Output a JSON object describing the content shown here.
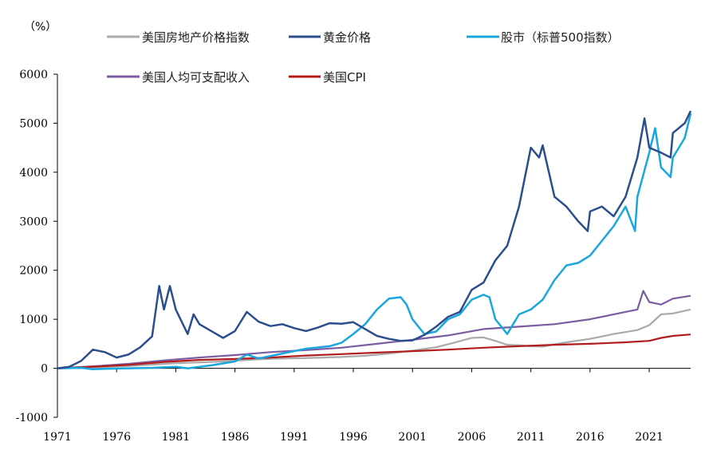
{
  "chart_data": {
    "type": "line",
    "unit_label": "（%）",
    "ylim": [
      -1000,
      6000
    ],
    "y_ticks": [
      -1000,
      0,
      1000,
      2000,
      3000,
      4000,
      5000,
      6000
    ],
    "xlim": [
      1971,
      2024.5
    ],
    "x_ticks": [
      1971,
      1976,
      1981,
      1986,
      1991,
      1996,
      2001,
      2006,
      2011,
      2016,
      2021
    ],
    "grid": false,
    "legend_position": "top",
    "series": [
      {
        "name": "美国房地产价格指数",
        "color": "#aaaaaa",
        "points": [
          [
            1971,
            0
          ],
          [
            1973,
            8
          ],
          [
            1975,
            25
          ],
          [
            1977,
            45
          ],
          [
            1979,
            75
          ],
          [
            1981,
            105
          ],
          [
            1983,
            120
          ],
          [
            1985,
            140
          ],
          [
            1987,
            170
          ],
          [
            1989,
            195
          ],
          [
            1991,
            205
          ],
          [
            1993,
            215
          ],
          [
            1995,
            230
          ],
          [
            1997,
            255
          ],
          [
            1999,
            300
          ],
          [
            2001,
            360
          ],
          [
            2003,
            430
          ],
          [
            2004.5,
            520
          ],
          [
            2006,
            620
          ],
          [
            2007,
            630
          ],
          [
            2008,
            560
          ],
          [
            2009,
            480
          ],
          [
            2010,
            470
          ],
          [
            2011,
            450
          ],
          [
            2012,
            440
          ],
          [
            2013,
            490
          ],
          [
            2014,
            530
          ],
          [
            2016,
            600
          ],
          [
            2018,
            700
          ],
          [
            2020,
            780
          ],
          [
            2021,
            880
          ],
          [
            2022,
            1100
          ],
          [
            2023,
            1120
          ],
          [
            2024.5,
            1200
          ]
        ]
      },
      {
        "name": "黄金价格",
        "color": "#2b4e8c",
        "points": [
          [
            1971,
            0
          ],
          [
            1972,
            30
          ],
          [
            1973,
            150
          ],
          [
            1974,
            380
          ],
          [
            1975,
            330
          ],
          [
            1976,
            220
          ],
          [
            1977,
            280
          ],
          [
            1978,
            430
          ],
          [
            1979,
            650
          ],
          [
            1979.6,
            1680
          ],
          [
            1980,
            1200
          ],
          [
            1980.5,
            1680
          ],
          [
            1981,
            1200
          ],
          [
            1982,
            700
          ],
          [
            1982.5,
            1100
          ],
          [
            1983,
            900
          ],
          [
            1984,
            760
          ],
          [
            1985,
            620
          ],
          [
            1986,
            760
          ],
          [
            1987,
            1150
          ],
          [
            1988,
            950
          ],
          [
            1989,
            860
          ],
          [
            1990,
            900
          ],
          [
            1991,
            820
          ],
          [
            1992,
            760
          ],
          [
            1993,
            830
          ],
          [
            1994,
            920
          ],
          [
            1995,
            910
          ],
          [
            1996,
            940
          ],
          [
            1997,
            800
          ],
          [
            1998,
            660
          ],
          [
            1999,
            600
          ],
          [
            2000,
            560
          ],
          [
            2001,
            570
          ],
          [
            2002,
            680
          ],
          [
            2003,
            850
          ],
          [
            2004,
            1050
          ],
          [
            2005,
            1150
          ],
          [
            2006,
            1600
          ],
          [
            2007,
            1750
          ],
          [
            2008,
            2200
          ],
          [
            2009,
            2500
          ],
          [
            2010,
            3300
          ],
          [
            2011,
            4500
          ],
          [
            2011.7,
            4300
          ],
          [
            2012,
            4550
          ],
          [
            2013,
            3500
          ],
          [
            2014,
            3300
          ],
          [
            2015,
            3000
          ],
          [
            2015.8,
            2800
          ],
          [
            2016,
            3200
          ],
          [
            2017,
            3300
          ],
          [
            2018,
            3100
          ],
          [
            2019,
            3500
          ],
          [
            2020,
            4300
          ],
          [
            2020.6,
            5100
          ],
          [
            2021,
            4500
          ],
          [
            2022,
            4400
          ],
          [
            2022.8,
            4300
          ],
          [
            2023,
            4800
          ],
          [
            2024,
            5000
          ],
          [
            2024.5,
            5250
          ]
        ]
      },
      {
        "name": "股市（标普500指数）",
        "color": "#1aa7de",
        "points": [
          [
            1971,
            0
          ],
          [
            1973,
            10
          ],
          [
            1974,
            -20
          ],
          [
            1975,
            -10
          ],
          [
            1977,
            0
          ],
          [
            1979,
            10
          ],
          [
            1981,
            30
          ],
          [
            1982,
            0
          ],
          [
            1984,
            60
          ],
          [
            1986,
            140
          ],
          [
            1987,
            280
          ],
          [
            1988,
            200
          ],
          [
            1990,
            300
          ],
          [
            1992,
            400
          ],
          [
            1994,
            450
          ],
          [
            1995,
            520
          ],
          [
            1996,
            700
          ],
          [
            1997,
            900
          ],
          [
            1998,
            1200
          ],
          [
            1999,
            1420
          ],
          [
            2000,
            1450
          ],
          [
            2000.5,
            1300
          ],
          [
            2001,
            1000
          ],
          [
            2002,
            700
          ],
          [
            2003,
            750
          ],
          [
            2004,
            1000
          ],
          [
            2005,
            1100
          ],
          [
            2006,
            1400
          ],
          [
            2007,
            1500
          ],
          [
            2007.5,
            1450
          ],
          [
            2008,
            1000
          ],
          [
            2009,
            700
          ],
          [
            2010,
            1100
          ],
          [
            2011,
            1200
          ],
          [
            2012,
            1400
          ],
          [
            2013,
            1800
          ],
          [
            2014,
            2100
          ],
          [
            2015,
            2150
          ],
          [
            2016,
            2300
          ],
          [
            2017,
            2600
          ],
          [
            2018,
            2900
          ],
          [
            2019,
            3300
          ],
          [
            2019.8,
            2800
          ],
          [
            2020,
            3500
          ],
          [
            2021,
            4400
          ],
          [
            2021.5,
            4900
          ],
          [
            2022,
            4100
          ],
          [
            2022.8,
            3900
          ],
          [
            2023,
            4300
          ],
          [
            2024,
            4700
          ],
          [
            2024.5,
            5200
          ]
        ]
      },
      {
        "name": "美国人均可支配收入",
        "color": "#7b5ca0",
        "points": [
          [
            1971,
            0
          ],
          [
            1974,
            40
          ],
          [
            1977,
            90
          ],
          [
            1980,
            160
          ],
          [
            1983,
            220
          ],
          [
            1986,
            270
          ],
          [
            1989,
            330
          ],
          [
            1992,
            370
          ],
          [
            1995,
            420
          ],
          [
            1998,
            500
          ],
          [
            2001,
            580
          ],
          [
            2004,
            670
          ],
          [
            2007,
            800
          ],
          [
            2010,
            850
          ],
          [
            2013,
            900
          ],
          [
            2016,
            1000
          ],
          [
            2019,
            1150
          ],
          [
            2020,
            1200
          ],
          [
            2020.5,
            1580
          ],
          [
            2021,
            1350
          ],
          [
            2022,
            1300
          ],
          [
            2023,
            1420
          ],
          [
            2024.5,
            1480
          ]
        ]
      },
      {
        "name": "美国CPI",
        "color": "#b21c1c",
        "points": [
          [
            1971,
            0
          ],
          [
            1974,
            30
          ],
          [
            1977,
            70
          ],
          [
            1980,
            130
          ],
          [
            1983,
            170
          ],
          [
            1986,
            190
          ],
          [
            1989,
            220
          ],
          [
            1992,
            260
          ],
          [
            1995,
            290
          ],
          [
            1998,
            320
          ],
          [
            2001,
            350
          ],
          [
            2004,
            380
          ],
          [
            2007,
            420
          ],
          [
            2010,
            450
          ],
          [
            2013,
            480
          ],
          [
            2016,
            500
          ],
          [
            2019,
            530
          ],
          [
            2021,
            560
          ],
          [
            2022,
            620
          ],
          [
            2023,
            660
          ],
          [
            2024.5,
            690
          ]
        ]
      }
    ]
  }
}
